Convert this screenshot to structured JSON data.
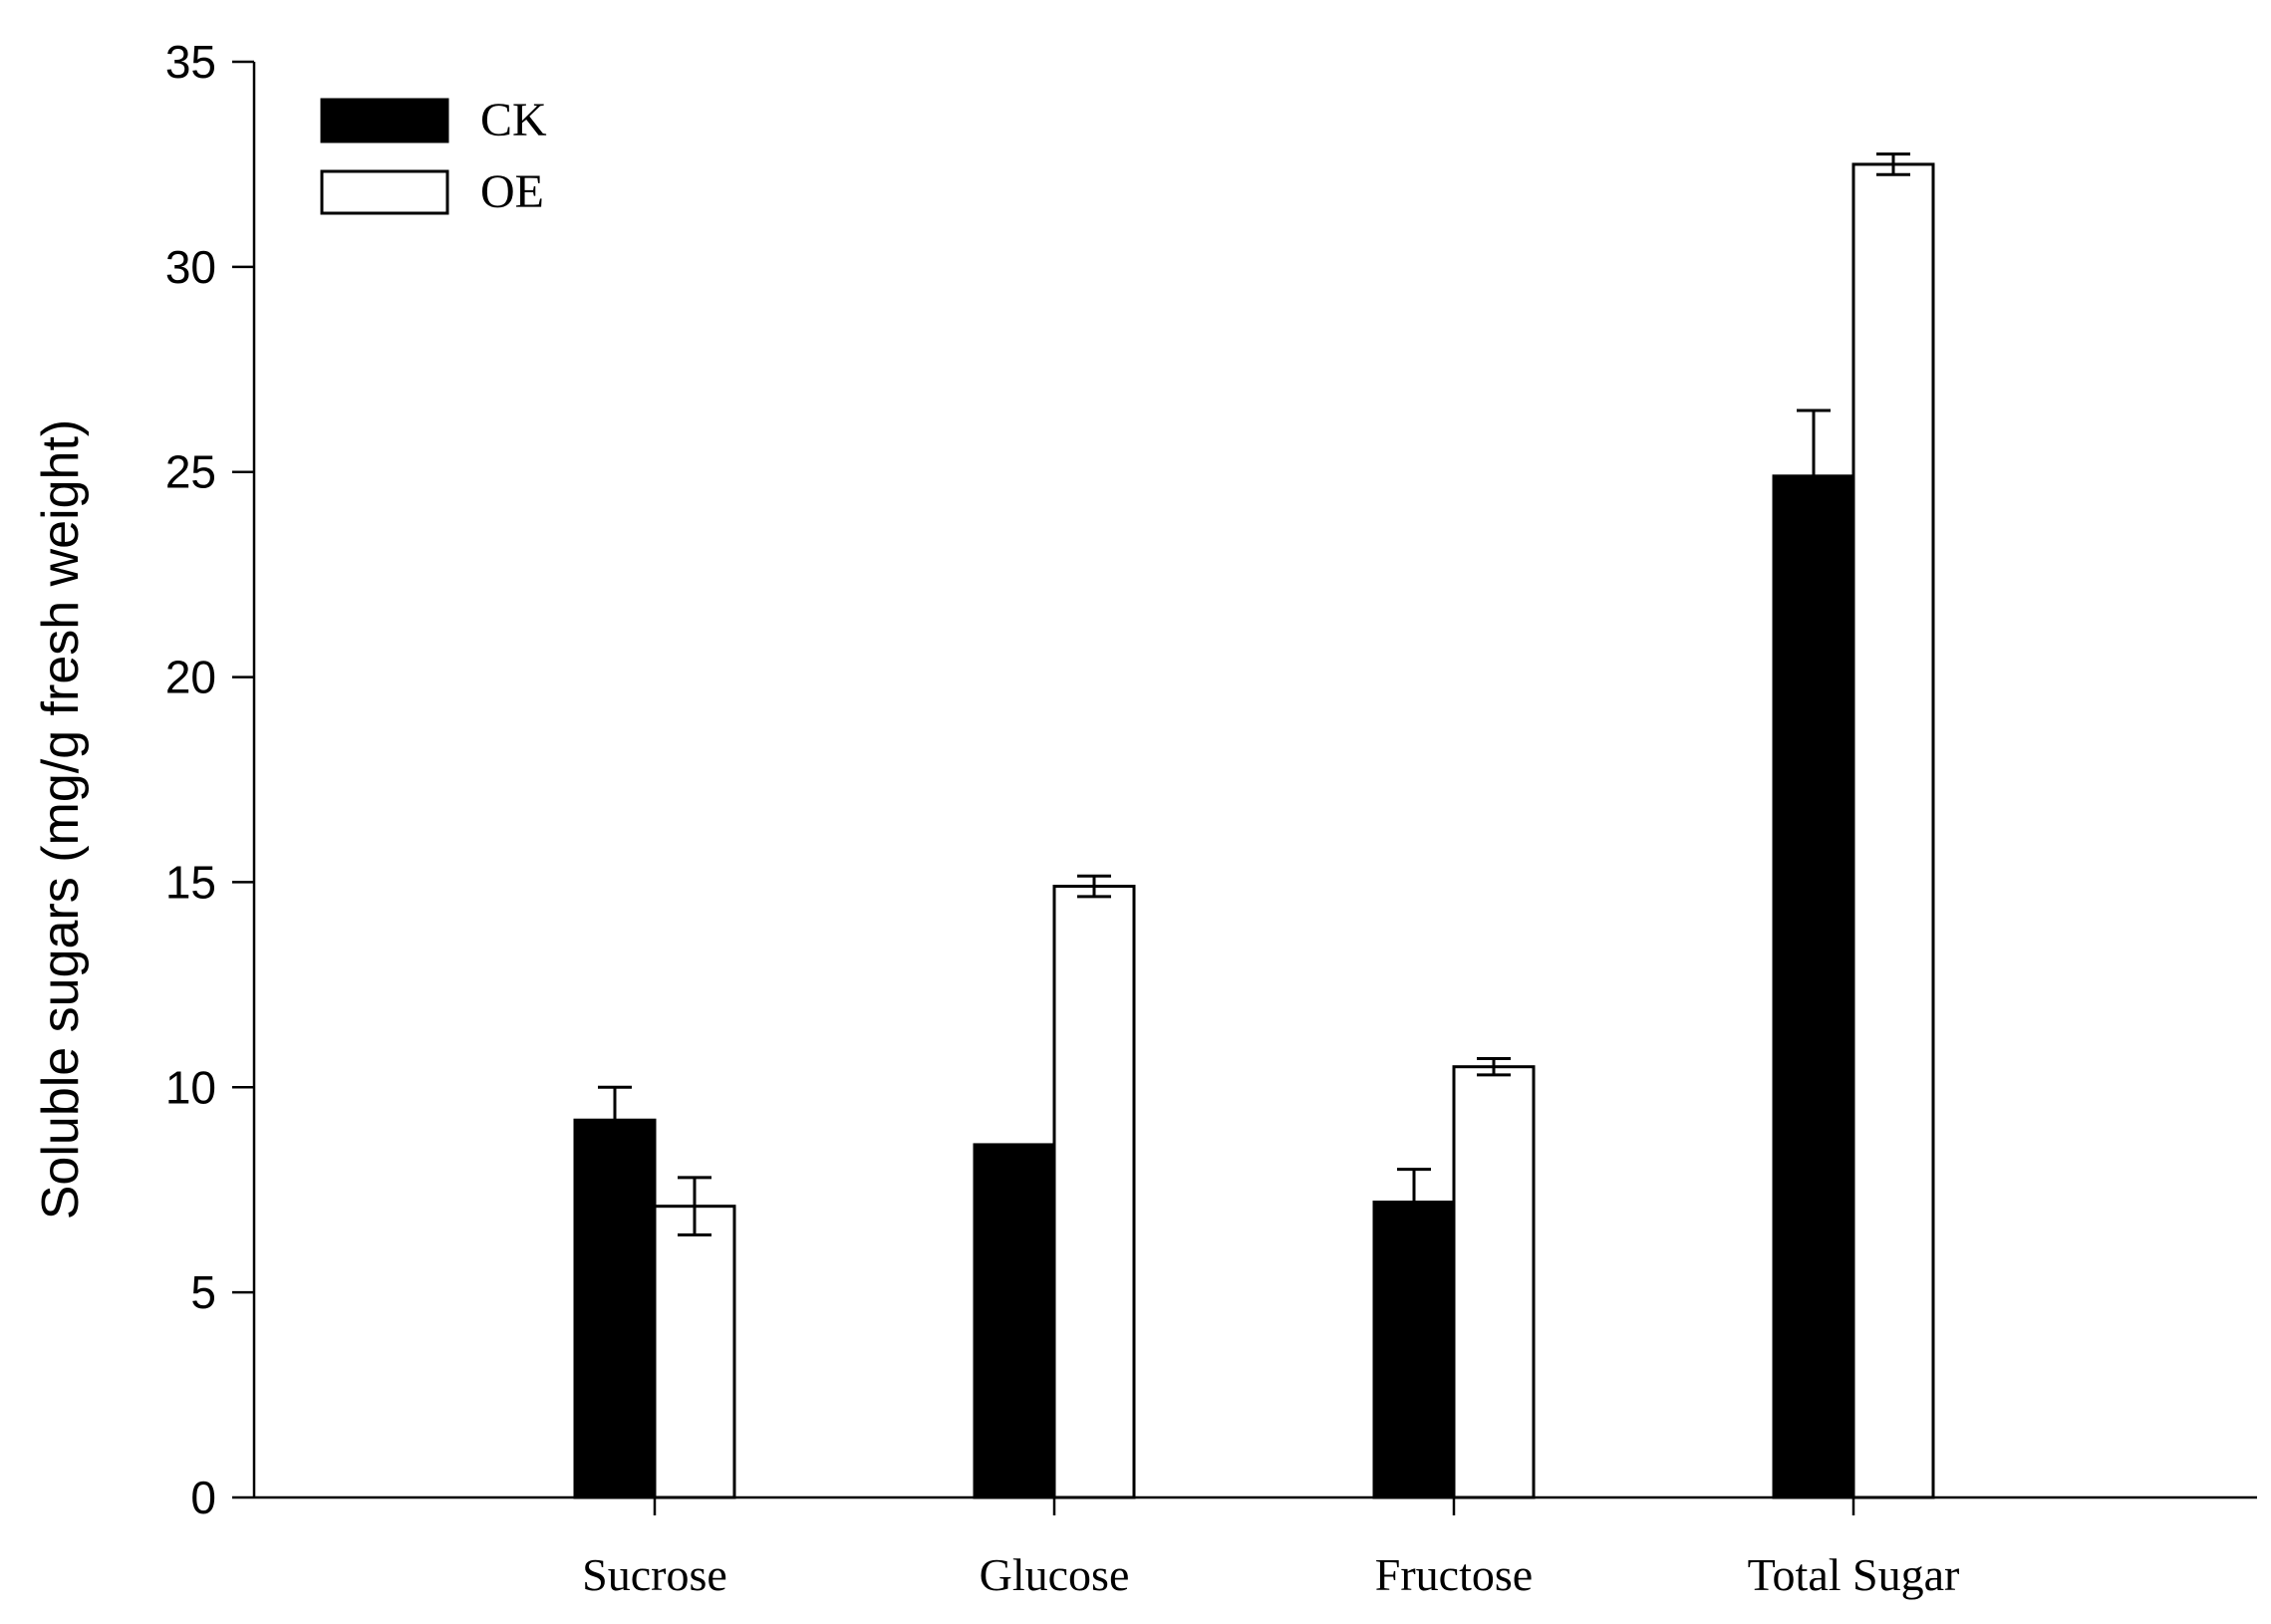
{
  "chart_data": {
    "type": "bar",
    "title": "",
    "xlabel": "",
    "ylabel": "Soluble sugars (mg/g fresh weight)",
    "ylim": [
      0,
      35
    ],
    "yticks": [
      0,
      5,
      10,
      15,
      20,
      25,
      30,
      35
    ],
    "categories": [
      "Sucrose",
      "Glucose",
      "Fructose",
      "Total Sugar"
    ],
    "series": [
      {
        "name": "CK",
        "color": "#000000",
        "values": [
          9.2,
          8.6,
          7.2,
          24.9
        ],
        "errors": [
          0.8,
          0.0,
          0.8,
          1.6
        ]
      },
      {
        "name": "OE",
        "color": "#ffffff",
        "values": [
          7.1,
          14.9,
          10.5,
          32.5
        ],
        "errors": [
          0.7,
          0.25,
          0.2,
          0.25
        ]
      }
    ],
    "legend_position": "top-left",
    "grid": false
  }
}
